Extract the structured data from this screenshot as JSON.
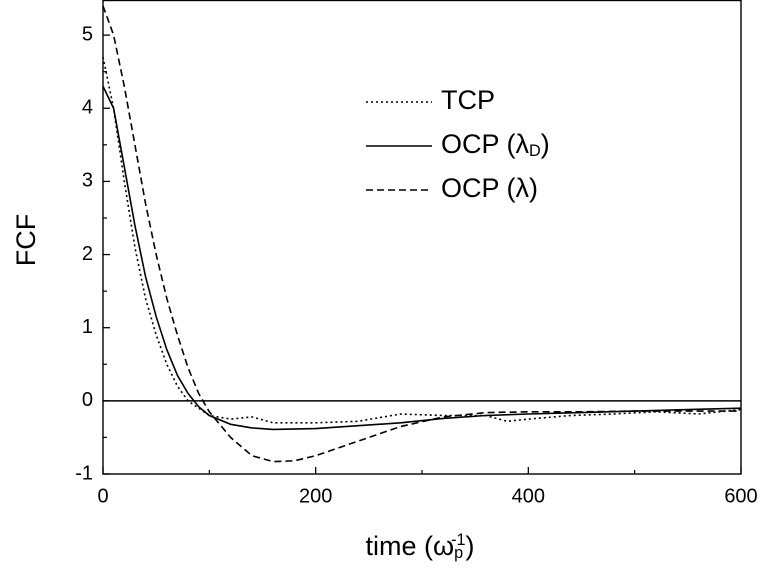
{
  "chart_data": {
    "type": "line",
    "xlabel": [
      {
        "text": "time (ω"
      },
      {
        "text": "p",
        "shift": "sub"
      },
      {
        "text": "-1",
        "shift": "sup"
      },
      {
        "text": ")"
      }
    ],
    "ylabel": "FCF",
    "xlim": [
      0,
      600
    ],
    "ylim": [
      -1,
      5.48
    ],
    "xticks": [
      0,
      200,
      400,
      600
    ],
    "xticks_minor": [
      100,
      300,
      500
    ],
    "yticks": [
      -1,
      0,
      1,
      2,
      3,
      4,
      5
    ],
    "yticks_minor": [
      -0.5,
      0.5,
      1.5,
      2.5,
      3.5,
      4.5
    ],
    "hline": 0,
    "series": [
      {
        "name": [
          {
            "text": "TCP"
          }
        ],
        "color": "#000000",
        "dash": "2,3",
        "x": [
          0,
          10,
          20,
          30,
          40,
          50,
          60,
          70,
          80,
          90,
          100,
          120,
          140,
          160,
          200,
          240,
          280,
          320,
          360,
          380,
          400,
          440,
          480,
          520,
          560,
          600
        ],
        "values": [
          4.7,
          4.0,
          3.0,
          2.1,
          1.4,
          0.9,
          0.5,
          0.2,
          0.0,
          -0.1,
          -0.2,
          -0.25,
          -0.22,
          -0.3,
          -0.3,
          -0.28,
          -0.18,
          -0.2,
          -0.2,
          -0.28,
          -0.25,
          -0.2,
          -0.18,
          -0.15,
          -0.18,
          -0.12
        ]
      },
      {
        "name": [
          {
            "text": "OCP (λ"
          },
          {
            "text": "D",
            "shift": "sub"
          },
          {
            "text": ")"
          }
        ],
        "color": "#000000",
        "dash": "none",
        "x": [
          0,
          10,
          20,
          30,
          40,
          50,
          60,
          70,
          80,
          90,
          100,
          120,
          140,
          160,
          200,
          240,
          280,
          320,
          360,
          400,
          450,
          500,
          550,
          600
        ],
        "values": [
          4.3,
          4.0,
          3.2,
          2.4,
          1.7,
          1.15,
          0.7,
          0.35,
          0.1,
          -0.08,
          -0.2,
          -0.32,
          -0.37,
          -0.39,
          -0.38,
          -0.34,
          -0.3,
          -0.24,
          -0.2,
          -0.18,
          -0.16,
          -0.14,
          -0.12,
          -0.1
        ]
      },
      {
        "name": [
          {
            "text": "OCP (λ)"
          }
        ],
        "color": "#000000",
        "dash": "7,4",
        "x": [
          0,
          10,
          20,
          30,
          40,
          50,
          60,
          70,
          80,
          90,
          100,
          120,
          140,
          160,
          180,
          200,
          240,
          280,
          320,
          360,
          400,
          450,
          500,
          550,
          600
        ],
        "values": [
          5.4,
          5.0,
          4.3,
          3.5,
          2.7,
          2.0,
          1.4,
          0.9,
          0.45,
          0.1,
          -0.15,
          -0.5,
          -0.75,
          -0.83,
          -0.82,
          -0.75,
          -0.55,
          -0.35,
          -0.22,
          -0.16,
          -0.15,
          -0.15,
          -0.14,
          -0.14,
          -0.14
        ]
      }
    ]
  }
}
